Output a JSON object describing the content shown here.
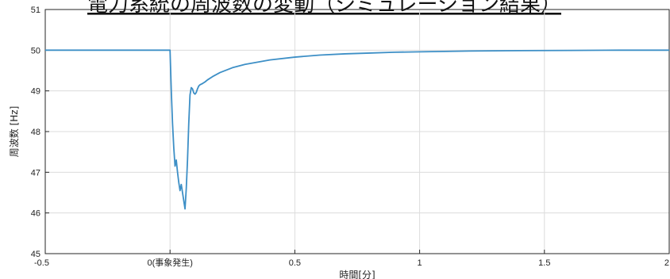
{
  "chart_data": {
    "type": "line",
    "title": "電力系統の周波数の変動（シミュレーション結果）",
    "xlabel": "時間[分]",
    "ylabel": "周波数 [Hz]",
    "xlim": [
      -0.5,
      2
    ],
    "ylim": [
      45,
      51
    ],
    "x_ticks": [
      -0.5,
      0,
      0.5,
      1,
      1.5,
      2
    ],
    "x_tick_labels": [
      "-0.5",
      "0(事象発生)",
      "0.5",
      "1",
      "1.5",
      "2"
    ],
    "y_ticks": [
      45,
      46,
      47,
      48,
      49,
      50,
      51
    ],
    "y_tick_labels": [
      "45",
      "46",
      "47",
      "48",
      "49",
      "50",
      "51"
    ],
    "grid": true,
    "line_color": "#3d8fc6",
    "series": [
      {
        "x": [
          -0.5,
          -0.4,
          -0.2,
          0.0,
          0.005,
          0.01,
          0.015,
          0.02,
          0.025,
          0.03,
          0.035,
          0.04,
          0.045,
          0.05,
          0.055,
          0.06,
          0.065,
          0.07,
          0.075,
          0.08,
          0.085,
          0.09,
          0.095,
          0.1,
          0.105,
          0.11,
          0.115,
          0.12,
          0.13,
          0.14,
          0.15,
          0.17,
          0.2,
          0.25,
          0.3,
          0.4,
          0.5,
          0.6,
          0.7,
          0.8,
          0.9,
          1.0,
          1.2,
          1.4,
          1.6,
          1.8,
          2.0
        ],
        "y": [
          50.0,
          50.0,
          50.0,
          50.0,
          49.0,
          48.2,
          47.6,
          47.15,
          47.3,
          47.0,
          46.75,
          46.55,
          46.7,
          46.5,
          46.3,
          46.1,
          46.6,
          47.3,
          48.2,
          48.9,
          49.08,
          49.05,
          48.95,
          48.92,
          48.96,
          49.05,
          49.12,
          49.15,
          49.18,
          49.22,
          49.27,
          49.35,
          49.45,
          49.57,
          49.65,
          49.76,
          49.83,
          49.88,
          49.91,
          49.93,
          49.95,
          49.96,
          49.98,
          49.99,
          49.995,
          50.0,
          50.0
        ]
      }
    ]
  }
}
